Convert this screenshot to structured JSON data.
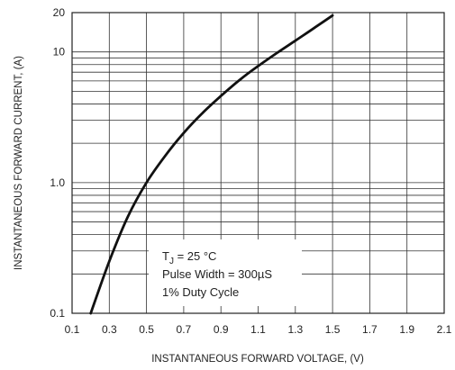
{
  "chart_data": {
    "type": "line",
    "xlabel": "INSTANTANEOUS FORWARD VOLTAGE, (V)",
    "ylabel": "INSTANTANEOUS FORWARD CURRENT, (A)",
    "xlim": [
      0.1,
      2.1
    ],
    "ylim": [
      0.1,
      20
    ],
    "yscale": "log",
    "grid": true,
    "x_ticks": [
      "0.1",
      "0.3",
      "0.5",
      "0.7",
      "0.9",
      "1.1",
      "1.3",
      "1.5",
      "1.7",
      "1.9",
      "2.1"
    ],
    "y_ticks": [
      "0.1",
      "1.0",
      "10",
      "20"
    ],
    "series": [
      {
        "x": [
          0.2,
          0.3,
          0.4,
          0.5,
          0.6,
          0.7,
          0.8,
          0.9,
          1.0,
          1.1,
          1.2,
          1.3,
          1.4,
          1.5
        ],
        "y": [
          0.1,
          0.25,
          0.55,
          1.0,
          1.6,
          2.4,
          3.4,
          4.6,
          6.1,
          7.8,
          9.8,
          12.2,
          15.2,
          19.0
        ]
      }
    ],
    "annotation": {
      "line1_prefix": "T",
      "line1_sub": "J",
      "line1_value": " = 25 ",
      "line1_unit": "°C",
      "line2": "Pulse Width = 300µS",
      "line3": "1% Duty Cycle"
    }
  }
}
